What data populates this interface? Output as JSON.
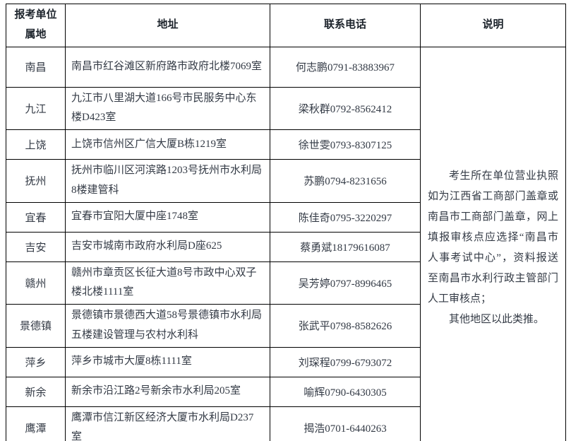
{
  "table": {
    "headers": {
      "col1": "报考单位属地",
      "col2": "地址",
      "col3": "联系电话",
      "col4": "说明"
    },
    "rows": [
      {
        "city": "南昌",
        "address": "南昌市红谷滩区新府路市政府北楼7069室",
        "contact": "何志鹏0791-83883967"
      },
      {
        "city": "九江",
        "address": "九江市八里湖大道166号市民服务中心东楼D423室",
        "contact": "梁秋群0792-8562412"
      },
      {
        "city": "上饶",
        "address": "上饶市信州区广信大厦B栋1219室",
        "contact": "徐世雯0793-8307125"
      },
      {
        "city": "抚州",
        "address": "抚州市临川区河滨路1203号抚州市水利局8楼建管科",
        "contact": "苏鹏0794-8231656"
      },
      {
        "city": "宜春",
        "address": "宜春市宜阳大厦中座1748室",
        "contact": "陈佳奇0795-3220297"
      },
      {
        "city": "吉安",
        "address": "吉安市城南市政府水利局D座625",
        "contact": "蔡勇斌18179616087"
      },
      {
        "city": "赣州",
        "address": "赣州市章贡区长征大道8号市政中心双子楼北楼1111室",
        "contact": "吴芳婷0797-8996465"
      },
      {
        "city": "景德镇",
        "address": "景德镇市景德西大道58号景德镇市水利局五楼建设管理与农村水利科",
        "contact": "张武平0798-8582626"
      },
      {
        "city": "萍乡",
        "address": "萍乡市城市大厦8栋1111室",
        "contact": "刘琛程0799-6793072"
      },
      {
        "city": "新余",
        "address": "新余市沿江路2号新余市水利局205室",
        "contact": "喻辉0790-6430305"
      },
      {
        "city": "鹰潭",
        "address": "鹰潭市信江新区经济大厦市水利局D237室",
        "contact": "揭浩0701-6440263"
      }
    ],
    "notes": {
      "paragraph1": "考生所在单位营业执照如为江西省工商部门盖章或南昌市工商部门盖章，网上填报审核点应选择“南昌市人事考试中心”，资料报送至南昌市水利行政主管部门人工审核点；",
      "paragraph2": "其他地区以此类推。"
    }
  },
  "colors": {
    "text": "#333a45",
    "border": "#000000",
    "background": "#ffffff"
  }
}
